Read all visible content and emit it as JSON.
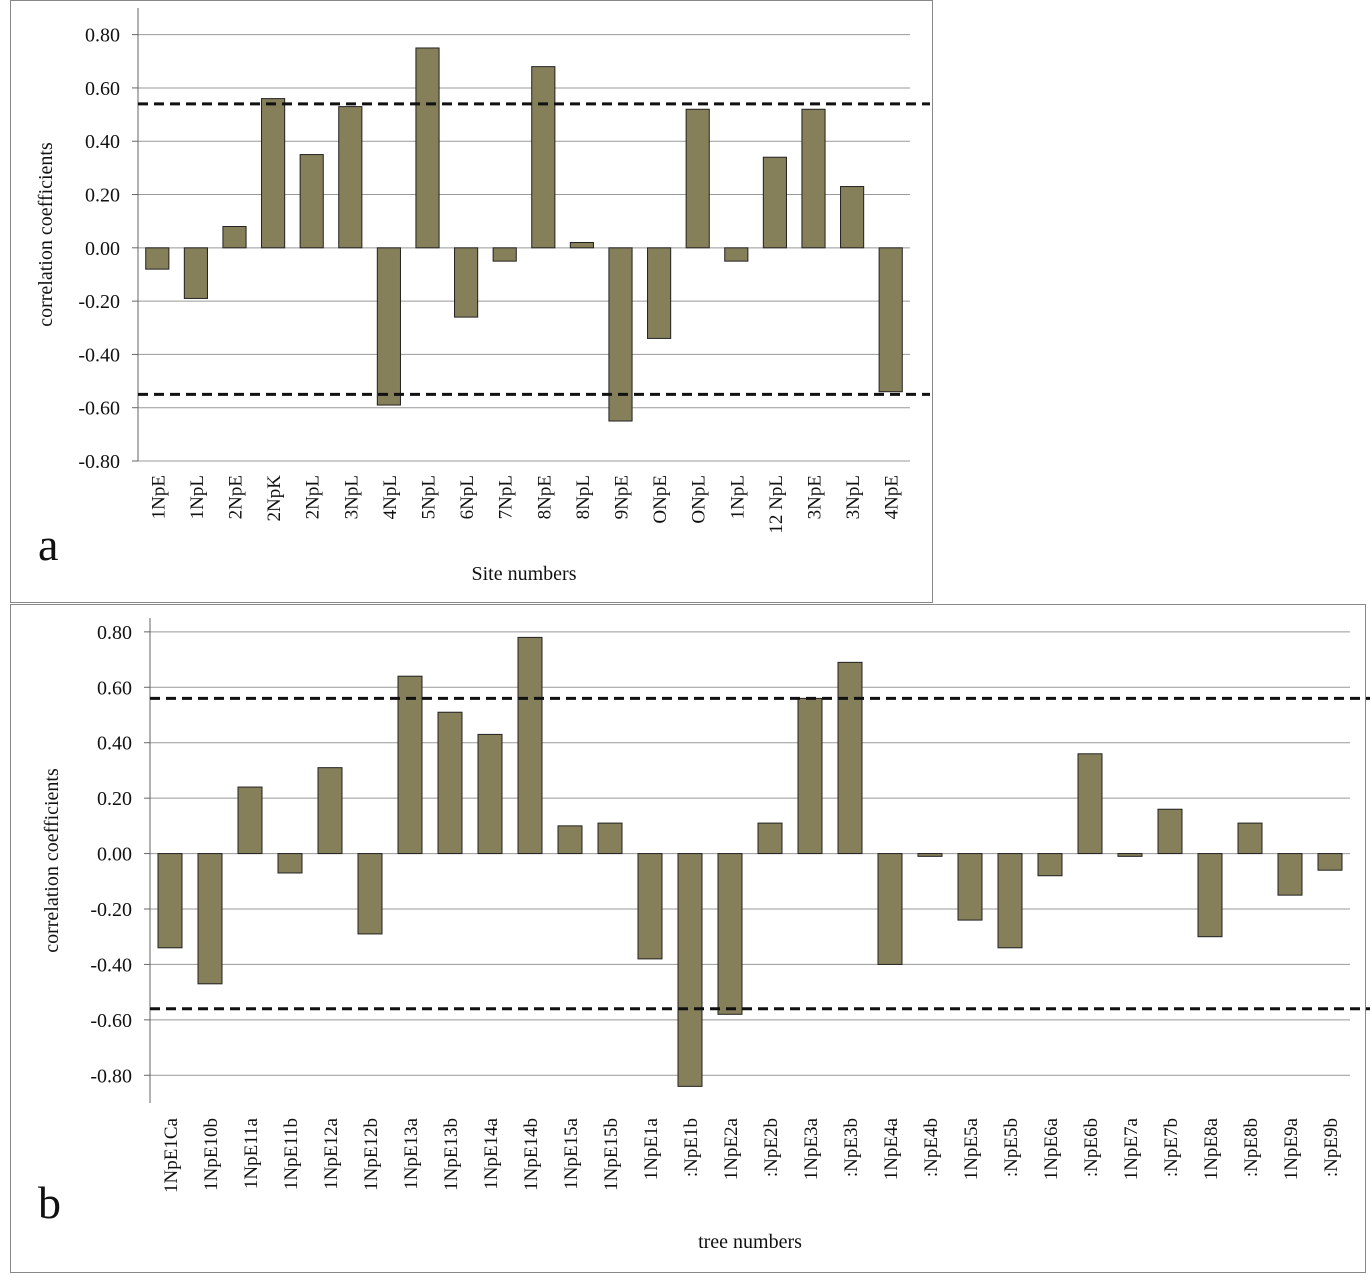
{
  "chart_data": [
    {
      "type": "bar",
      "panel_label": "a",
      "xlabel": "Site numbers",
      "ylabel": "correlation coefficients",
      "categories": [
        "1NpE",
        "1NpL",
        "2NpE",
        "2NpK",
        "2NpL",
        "3NpL",
        "4NpL",
        "5NpL",
        "6NpL",
        "7NpL",
        "8NpE",
        "8NpL",
        "9NpE",
        "ONpE",
        "ONpL",
        "1NpL",
        "12 NpL",
        "3NpE",
        "3NpL",
        "4NpE"
      ],
      "values": [
        -0.08,
        -0.19,
        0.08,
        0.56,
        0.35,
        0.53,
        -0.59,
        0.75,
        -0.26,
        -0.05,
        0.68,
        0.02,
        -0.65,
        -0.34,
        0.52,
        -0.05,
        0.34,
        0.52,
        0.23,
        -0.54
      ],
      "color": "#857f5a",
      "ylim": [
        -0.8,
        0.9
      ],
      "yticks": [
        {
          "value": -0.8,
          "label": "-0.80"
        },
        {
          "value": -0.6,
          "label": "-0.60"
        },
        {
          "value": -0.4,
          "label": "-0.40"
        },
        {
          "value": -0.2,
          "label": "-0.20"
        },
        {
          "value": 0,
          "label": "0.00"
        },
        {
          "value": 0.2,
          "label": "0.20"
        },
        {
          "value": 0.4,
          "label": "0.40"
        },
        {
          "value": 0.6,
          "label": "0.60"
        },
        {
          "value": 0.8,
          "label": "0.80"
        }
      ],
      "grid": true,
      "reference_lines": [
        0.54,
        -0.55
      ]
    },
    {
      "type": "bar",
      "panel_label": "b",
      "xlabel": "tree numbers",
      "ylabel": "correlation coefficients",
      "categories": [
        "1NpE1Ca",
        "1NpE10b",
        "1NpE11a",
        "1NpE11b",
        "1NpE12a",
        "1NpE12b",
        "1NpE13a",
        "1NpE13b",
        "1NpE14a",
        "1NpE14b",
        "1NpE15a",
        "1NpE15b",
        "1NpE1a",
        ":NpE1b",
        "1NpE2a",
        ":NpE2b",
        "1NpE3a",
        ":NpE3b",
        "1NpE4a",
        ":NpE4b",
        "1NpE5a",
        ":NpE5b",
        "1NpE6a",
        ":NpE6b",
        "1NpE7a",
        ":NpE7b",
        "1NpE8a",
        ":NpE8b",
        "1NpE9a",
        ":NpE9b"
      ],
      "values": [
        -0.34,
        -0.47,
        0.24,
        -0.07,
        0.31,
        -0.29,
        0.64,
        0.51,
        0.43,
        0.78,
        0.1,
        0.11,
        -0.38,
        -0.84,
        -0.58,
        0.11,
        0.56,
        0.69,
        -0.4,
        -0.01,
        -0.24,
        -0.34,
        -0.08,
        0.36,
        -0.01,
        0.16,
        -0.3,
        0.11,
        -0.15,
        -0.06
      ],
      "color": "#857f5a",
      "ylim": [
        -0.9,
        0.85
      ],
      "yticks": [
        {
          "value": -0.8,
          "label": "-0.80"
        },
        {
          "value": -0.6,
          "label": "-0.60"
        },
        {
          "value": -0.4,
          "label": "-0.40"
        },
        {
          "value": -0.2,
          "label": "-0.20"
        },
        {
          "value": 0,
          "label": "0.00"
        },
        {
          "value": 0.2,
          "label": "0.20"
        },
        {
          "value": 0.4,
          "label": "0.40"
        },
        {
          "value": 0.6,
          "label": "0.60"
        },
        {
          "value": 0.8,
          "label": "0.80"
        }
      ],
      "grid": true,
      "reference_lines": [
        0.56,
        -0.56
      ]
    }
  ]
}
